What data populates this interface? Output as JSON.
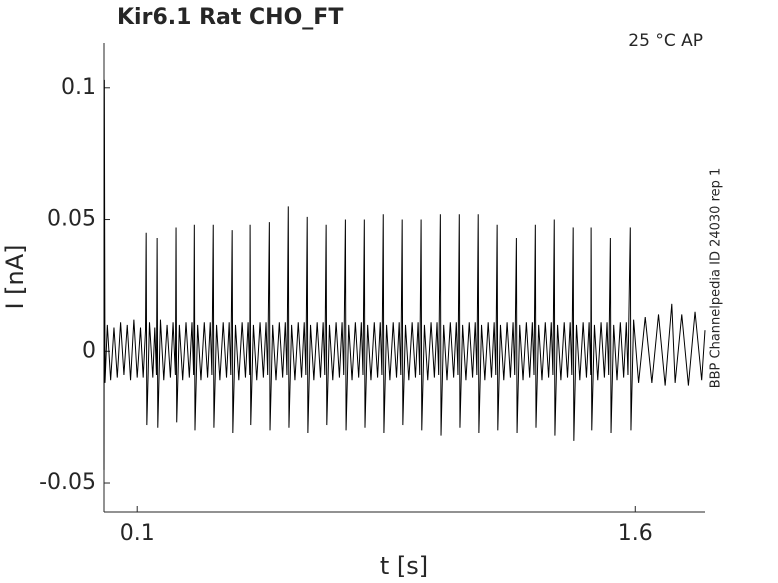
{
  "chart_data": {
    "type": "line",
    "title": "Kir6.1  Rat  CHO_FT",
    "subtitle": "25 °C  AP",
    "annotation": "BBP Channelpedia ID 24030 rep 1",
    "xlabel": "t [s]",
    "ylabel": "I [nA]",
    "xlim": [
      0,
      1.81
    ],
    "ylim": [
      -0.061,
      0.117
    ],
    "xticks": [
      0.1,
      1.6
    ],
    "yticks": [
      -0.05,
      0,
      0.05,
      0.1
    ],
    "series": [
      {
        "color": "#000000",
        "x": [
          0,
          0.001,
          0.003,
          0.01,
          0.02,
          0.03,
          0.04,
          0.05,
          0.06,
          0.07,
          0.08,
          0.09,
          0.1,
          0.11,
          0.118,
          0.125,
          0.127,
          0.129,
          0.137,
          0.147,
          0.153,
          0.158,
          0.16,
          0.162,
          0.17,
          0.18,
          0.19,
          0.2,
          0.208,
          0.215,
          0.217,
          0.219,
          0.227,
          0.237,
          0.247,
          0.257,
          0.265,
          0.27,
          0.272,
          0.274,
          0.282,
          0.292,
          0.302,
          0.312,
          0.32,
          0.325,
          0.329,
          0.331,
          0.339,
          0.349,
          0.359,
          0.369,
          0.377,
          0.382,
          0.386,
          0.388,
          0.396,
          0.406,
          0.416,
          0.426,
          0.434,
          0.439,
          0.44,
          0.442,
          0.45,
          0.46,
          0.47,
          0.48,
          0.488,
          0.493,
          0.498,
          0.5,
          0.508,
          0.518,
          0.528,
          0.538,
          0.546,
          0.551,
          0.555,
          0.557,
          0.565,
          0.575,
          0.585,
          0.595,
          0.603,
          0.608,
          0.612,
          0.614,
          0.622,
          0.632,
          0.642,
          0.652,
          0.66,
          0.665,
          0.669,
          0.671,
          0.679,
          0.689,
          0.699,
          0.709,
          0.717,
          0.722,
          0.727,
          0.729,
          0.737,
          0.747,
          0.757,
          0.767,
          0.775,
          0.78,
          0.784,
          0.786,
          0.794,
          0.804,
          0.814,
          0.824,
          0.832,
          0.837,
          0.841,
          0.843,
          0.851,
          0.861,
          0.871,
          0.881,
          0.889,
          0.894,
          0.898,
          0.9,
          0.908,
          0.918,
          0.928,
          0.938,
          0.946,
          0.951,
          0.955,
          0.957,
          0.965,
          0.975,
          0.985,
          0.995,
          1.003,
          1.008,
          1.013,
          1.015,
          1.023,
          1.033,
          1.043,
          1.053,
          1.061,
          1.066,
          1.07,
          1.072,
          1.08,
          1.09,
          1.1,
          1.11,
          1.118,
          1.123,
          1.127,
          1.129,
          1.137,
          1.147,
          1.157,
          1.167,
          1.175,
          1.18,
          1.184,
          1.186,
          1.194,
          1.204,
          1.214,
          1.224,
          1.232,
          1.237,
          1.242,
          1.244,
          1.252,
          1.262,
          1.272,
          1.282,
          1.29,
          1.295,
          1.299,
          1.301,
          1.309,
          1.319,
          1.329,
          1.339,
          1.347,
          1.352,
          1.356,
          1.358,
          1.366,
          1.376,
          1.386,
          1.396,
          1.404,
          1.409,
          1.413,
          1.415,
          1.423,
          1.433,
          1.443,
          1.453,
          1.461,
          1.466,
          1.467,
          1.469,
          1.477,
          1.487,
          1.497,
          1.507,
          1.515,
          1.52,
          1.525,
          1.527,
          1.535,
          1.545,
          1.555,
          1.565,
          1.573,
          1.578,
          1.585,
          1.587,
          1.595,
          1.61,
          1.63,
          1.65,
          1.67,
          1.69,
          1.71,
          1.72,
          1.74,
          1.76,
          1.78,
          1.8,
          1.81
        ],
        "values": [
          -0.045,
          0.103,
          -0.012,
          0.01,
          -0.011,
          0.009,
          -0.01,
          0.011,
          -0.009,
          0.01,
          -0.011,
          0.012,
          -0.01,
          0.009,
          -0.01,
          0.008,
          0.045,
          -0.028,
          0.011,
          -0.01,
          0.009,
          -0.009,
          0.043,
          -0.029,
          0.012,
          -0.011,
          0.01,
          -0.01,
          0.011,
          -0.009,
          0.047,
          -0.027,
          0.01,
          -0.011,
          0.011,
          -0.01,
          0.011,
          -0.009,
          0.048,
          -0.03,
          0.01,
          -0.011,
          0.011,
          -0.01,
          0.011,
          -0.009,
          0.048,
          -0.029,
          0.01,
          -0.011,
          0.011,
          -0.01,
          0.011,
          -0.009,
          0.046,
          -0.031,
          0.01,
          -0.011,
          0.011,
          -0.01,
          0.011,
          -0.009,
          0.048,
          -0.028,
          0.01,
          -0.011,
          0.011,
          -0.01,
          0.011,
          -0.009,
          0.049,
          -0.03,
          0.01,
          -0.011,
          0.011,
          -0.01,
          0.011,
          -0.009,
          0.055,
          -0.029,
          0.01,
          -0.011,
          0.011,
          -0.01,
          0.011,
          -0.009,
          0.051,
          -0.031,
          0.01,
          -0.011,
          0.011,
          -0.01,
          0.011,
          -0.009,
          0.048,
          -0.028,
          0.01,
          -0.011,
          0.011,
          -0.01,
          0.011,
          -0.009,
          0.05,
          -0.03,
          0.01,
          -0.011,
          0.011,
          -0.01,
          0.011,
          -0.009,
          0.05,
          -0.029,
          0.01,
          -0.011,
          0.011,
          -0.01,
          0.011,
          -0.009,
          0.052,
          -0.031,
          0.01,
          -0.011,
          0.011,
          -0.01,
          0.011,
          -0.009,
          0.05,
          -0.028,
          0.01,
          -0.011,
          0.011,
          -0.01,
          0.011,
          -0.009,
          0.05,
          -0.03,
          0.01,
          -0.011,
          0.011,
          -0.01,
          0.011,
          -0.009,
          0.052,
          -0.032,
          0.01,
          -0.011,
          0.011,
          -0.01,
          0.011,
          -0.009,
          0.052,
          -0.029,
          0.01,
          -0.011,
          0.011,
          -0.01,
          0.011,
          -0.009,
          0.052,
          -0.031,
          0.01,
          -0.011,
          0.011,
          -0.01,
          0.011,
          -0.009,
          0.048,
          -0.03,
          0.01,
          -0.011,
          0.011,
          -0.01,
          0.011,
          -0.009,
          0.043,
          -0.031,
          0.01,
          -0.011,
          0.011,
          -0.01,
          0.011,
          -0.009,
          0.048,
          -0.029,
          0.01,
          -0.011,
          0.011,
          -0.01,
          0.011,
          -0.009,
          0.05,
          -0.032,
          0.01,
          -0.011,
          0.011,
          -0.01,
          0.011,
          -0.009,
          0.047,
          -0.034,
          0.01,
          -0.011,
          0.011,
          -0.01,
          0.011,
          -0.009,
          0.047,
          -0.03,
          0.01,
          -0.011,
          0.011,
          -0.01,
          0.011,
          -0.009,
          0.043,
          -0.031,
          0.01,
          -0.011,
          0.011,
          -0.01,
          0.011,
          -0.009,
          0.047,
          -0.03,
          0.012,
          -0.012,
          0.013,
          -0.012,
          0.014,
          -0.013,
          0.018,
          -0.012,
          0.014,
          -0.013,
          0.015,
          -0.011,
          0.008
        ]
      }
    ]
  }
}
